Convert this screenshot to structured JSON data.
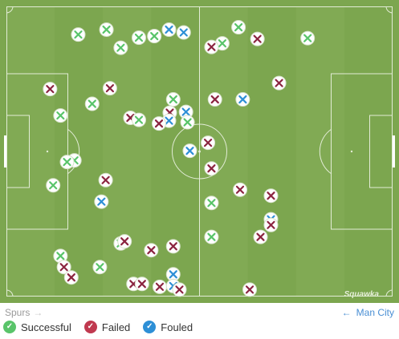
{
  "teams": {
    "home": "Spurs",
    "away": "Man City"
  },
  "watermark": "Squawka",
  "legend": [
    {
      "key": "successful",
      "label": "Successful",
      "color": "#59c46a",
      "icon": "check-icon"
    },
    {
      "key": "failed",
      "label": "Failed",
      "color": "#c0394f",
      "icon": "x-icon"
    },
    {
      "key": "fouled",
      "label": "Fouled",
      "color": "#2d8fd6",
      "icon": "chevron-icon"
    }
  ],
  "colors": {
    "pitch": "#7ca64f",
    "lines": "#e2ecd6",
    "successful": "#59c46a",
    "failed": "#8b2440",
    "fouled": "#2d8fd6",
    "text_muted": "#9a9a9a",
    "link": "#4a8fd4"
  },
  "events": [
    {
      "x": 18.6,
      "y": 5.9,
      "type": "successful"
    },
    {
      "x": 25.9,
      "y": 4.0,
      "type": "successful"
    },
    {
      "x": 34.3,
      "y": 7.1,
      "type": "successful"
    },
    {
      "x": 38.3,
      "y": 6.5,
      "type": "successful"
    },
    {
      "x": 42.1,
      "y": 4.0,
      "type": "fouled"
    },
    {
      "x": 45.9,
      "y": 5.1,
      "type": "fouled"
    },
    {
      "x": 29.6,
      "y": 11.0,
      "type": "successful"
    },
    {
      "x": 60.1,
      "y": 3.1,
      "type": "successful"
    },
    {
      "x": 55.9,
      "y": 9.3,
      "type": "successful"
    },
    {
      "x": 53.1,
      "y": 10.7,
      "type": "failed"
    },
    {
      "x": 65.0,
      "y": 7.6,
      "type": "failed"
    },
    {
      "x": 78.0,
      "y": 7.3,
      "type": "successful"
    },
    {
      "x": 11.3,
      "y": 26.9,
      "type": "failed"
    },
    {
      "x": 26.8,
      "y": 26.6,
      "type": "failed"
    },
    {
      "x": 70.6,
      "y": 24.6,
      "type": "failed"
    },
    {
      "x": 54.0,
      "y": 30.9,
      "type": "failed"
    },
    {
      "x": 61.2,
      "y": 30.9,
      "type": "fouled"
    },
    {
      "x": 22.2,
      "y": 32.6,
      "type": "successful"
    },
    {
      "x": 43.2,
      "y": 30.9,
      "type": "successful"
    },
    {
      "x": 14.0,
      "y": 37.1,
      "type": "successful"
    },
    {
      "x": 32.1,
      "y": 38.0,
      "type": "failed"
    },
    {
      "x": 34.3,
      "y": 38.8,
      "type": "successful"
    },
    {
      "x": 42.3,
      "y": 36.0,
      "type": "failed"
    },
    {
      "x": 46.5,
      "y": 35.7,
      "type": "fouled"
    },
    {
      "x": 42.1,
      "y": 39.1,
      "type": "fouled"
    },
    {
      "x": 46.9,
      "y": 39.7,
      "type": "successful"
    },
    {
      "x": 39.5,
      "y": 40.2,
      "type": "failed"
    },
    {
      "x": 52.2,
      "y": 47.6,
      "type": "failed"
    },
    {
      "x": 47.5,
      "y": 50.7,
      "type": "fouled"
    },
    {
      "x": 17.6,
      "y": 54.4,
      "type": "successful"
    },
    {
      "x": 15.7,
      "y": 55.0,
      "type": "successful"
    },
    {
      "x": 53.1,
      "y": 57.5,
      "type": "failed"
    },
    {
      "x": 25.7,
      "y": 62.0,
      "type": "failed"
    },
    {
      "x": 12.1,
      "y": 64.0,
      "type": "successful"
    },
    {
      "x": 60.5,
      "y": 65.7,
      "type": "failed"
    },
    {
      "x": 68.5,
      "y": 68.0,
      "type": "failed"
    },
    {
      "x": 24.6,
      "y": 70.3,
      "type": "fouled"
    },
    {
      "x": 53.1,
      "y": 70.8,
      "type": "successful"
    },
    {
      "x": 68.5,
      "y": 77.1,
      "type": "fouled"
    },
    {
      "x": 68.5,
      "y": 79.3,
      "type": "failed"
    },
    {
      "x": 65.8,
      "y": 83.9,
      "type": "failed"
    },
    {
      "x": 53.1,
      "y": 83.9,
      "type": "successful"
    },
    {
      "x": 29.6,
      "y": 86.4,
      "type": "successful"
    },
    {
      "x": 30.6,
      "y": 85.6,
      "type": "failed"
    },
    {
      "x": 37.5,
      "y": 89.0,
      "type": "failed"
    },
    {
      "x": 43.2,
      "y": 87.5,
      "type": "failed"
    },
    {
      "x": 14.0,
      "y": 91.2,
      "type": "successful"
    },
    {
      "x": 14.9,
      "y": 95.5,
      "type": "failed"
    },
    {
      "x": 24.2,
      "y": 95.5,
      "type": "successful"
    },
    {
      "x": 16.8,
      "y": 99.5,
      "type": "failed"
    },
    {
      "x": 43.2,
      "y": 98.3,
      "type": "fouled"
    },
    {
      "x": 32.9,
      "y": 102.0,
      "type": "failed"
    },
    {
      "x": 35.1,
      "y": 102.0,
      "type": "failed"
    },
    {
      "x": 39.7,
      "y": 103.1,
      "type": "failed"
    },
    {
      "x": 43.2,
      "y": 102.8,
      "type": "fouled"
    },
    {
      "x": 44.8,
      "y": 104.2,
      "type": "failed"
    },
    {
      "x": 63.0,
      "y": 104.2,
      "type": "failed"
    }
  ]
}
